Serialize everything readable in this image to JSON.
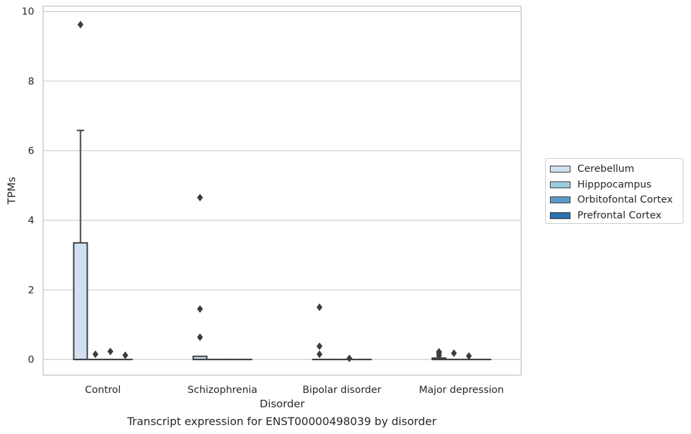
{
  "caption": "Transcript expression for ENST00000498039 by disorder",
  "chart_data": {
    "type": "boxplot",
    "title": "",
    "xlabel": "Disorder",
    "ylabel": "TPMs",
    "categories": [
      "Control",
      "Schizophrenia",
      "Bipolar disorder",
      "Major depression"
    ],
    "ylim": [
      -0.45,
      10.15
    ],
    "yticks": [
      0,
      2,
      4,
      6,
      8,
      10
    ],
    "grid": "horizontal",
    "legend_position": "right",
    "series": [
      {
        "name": "Cerebellum",
        "color": "#d0e0f0",
        "boxes": [
          {
            "q1": 0.0,
            "median": 0.0,
            "q3": 3.35,
            "whisker_low": 0.0,
            "whisker_high": 6.58,
            "outliers": [
              9.62
            ]
          },
          {
            "q1": 0.0,
            "median": 0.0,
            "q3": 0.09,
            "whisker_low": 0.0,
            "whisker_high": 0.09,
            "outliers": [
              4.65,
              1.45,
              0.64
            ]
          },
          {
            "q1": 0.0,
            "median": 0.0,
            "q3": 0.0,
            "whisker_low": 0.0,
            "whisker_high": 0.0,
            "outliers": [
              1.5,
              0.38,
              0.15
            ]
          },
          {
            "q1": 0.0,
            "median": 0.0,
            "q3": 0.04,
            "whisker_low": 0.0,
            "whisker_high": 0.04,
            "outliers": [
              0.22,
              0.18,
              0.11
            ]
          }
        ]
      },
      {
        "name": "Hipppocampus",
        "color": "#9ecae1",
        "boxes": [
          {
            "q1": 0.0,
            "median": 0.0,
            "q3": 0.0,
            "whisker_low": 0.0,
            "whisker_high": 0.0,
            "outliers": [
              0.15
            ]
          },
          {
            "q1": 0.0,
            "median": 0.0,
            "q3": 0.0,
            "whisker_low": 0.0,
            "whisker_high": 0.0,
            "outliers": []
          },
          {
            "q1": 0.0,
            "median": 0.0,
            "q3": 0.0,
            "whisker_low": 0.0,
            "whisker_high": 0.0,
            "outliers": []
          },
          {
            "q1": 0.0,
            "median": 0.0,
            "q3": 0.0,
            "whisker_low": 0.0,
            "whisker_high": 0.0,
            "outliers": [
              0.18
            ]
          }
        ]
      },
      {
        "name": "Orbitofontal Cortex",
        "color": "#5a9bc9",
        "boxes": [
          {
            "q1": 0.0,
            "median": 0.0,
            "q3": 0.0,
            "whisker_low": 0.0,
            "whisker_high": 0.0,
            "outliers": [
              0.23
            ]
          },
          {
            "q1": 0.0,
            "median": 0.0,
            "q3": 0.0,
            "whisker_low": 0.0,
            "whisker_high": 0.0,
            "outliers": []
          },
          {
            "q1": 0.0,
            "median": 0.0,
            "q3": 0.0,
            "whisker_low": 0.0,
            "whisker_high": 0.0,
            "outliers": [
              0.03
            ]
          },
          {
            "q1": 0.0,
            "median": 0.0,
            "q3": 0.0,
            "whisker_low": 0.0,
            "whisker_high": 0.0,
            "outliers": [
              0.1
            ]
          }
        ]
      },
      {
        "name": "Prefrontal Cortex",
        "color": "#2a6fae",
        "boxes": [
          {
            "q1": 0.0,
            "median": 0.0,
            "q3": 0.0,
            "whisker_low": 0.0,
            "whisker_high": 0.0,
            "outliers": [
              0.12
            ]
          },
          {
            "q1": 0.0,
            "median": 0.0,
            "q3": 0.0,
            "whisker_low": 0.0,
            "whisker_high": 0.0,
            "outliers": []
          },
          {
            "q1": 0.0,
            "median": 0.0,
            "q3": 0.0,
            "whisker_low": 0.0,
            "whisker_high": 0.0,
            "outliers": []
          },
          {
            "q1": 0.0,
            "median": 0.0,
            "q3": 0.0,
            "whisker_low": 0.0,
            "whisker_high": 0.0,
            "outliers": []
          }
        ]
      }
    ]
  }
}
